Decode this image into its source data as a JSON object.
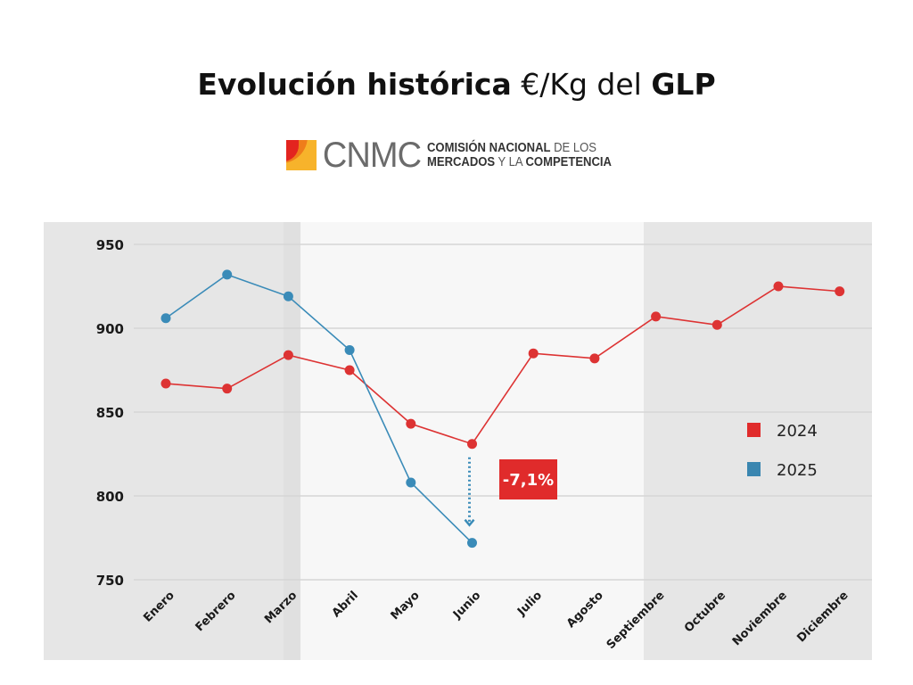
{
  "header": {
    "title_bold_1": "Evolución histórica",
    "title_light": "€/Kg del",
    "title_bold_2": "GLP"
  },
  "logo": {
    "acronym": "CNMC",
    "line1_bold": "COMISIÓN NACIONAL",
    "line1_light": "DE LOS",
    "line2_bold_1": "MERCADOS",
    "line2_light": "Y LA",
    "line2_bold_2": "COMPETENCIA"
  },
  "chart_data": {
    "type": "line",
    "title": "Evolución histórica €/Kg del GLP",
    "xlabel": "",
    "ylabel": "",
    "categories": [
      "Enero",
      "Febrero",
      "Marzo",
      "Abril",
      "Mayo",
      "Junio",
      "Julio",
      "Agosto",
      "Septiembre",
      "Octubre",
      "Noviembre",
      "Diciembre"
    ],
    "ylim": [
      750,
      950
    ],
    "yticks": [
      950,
      900,
      850,
      800,
      750
    ],
    "grid": true,
    "legend_position": "right",
    "series": [
      {
        "name": "2024",
        "color": "#dd3333",
        "values": [
          867,
          864,
          884,
          875,
          843,
          831,
          885,
          882,
          907,
          902,
          925,
          922
        ]
      },
      {
        "name": "2025",
        "color": "#3a8bb8",
        "values": [
          906,
          932,
          919,
          887,
          808,
          772
        ]
      }
    ],
    "annotation": {
      "label": "-7,1%",
      "color": "#e02b2b",
      "from_category": "Junio",
      "from_series": "2024",
      "to_series": "2025"
    },
    "background_bands": [
      {
        "from": "Enero",
        "to": "Marzo",
        "shade": "dark"
      },
      {
        "from": "Abril",
        "to": "Agosto",
        "shade": "light"
      },
      {
        "from": "Septiembre",
        "to": "Diciembre",
        "shade": "dark"
      }
    ]
  }
}
